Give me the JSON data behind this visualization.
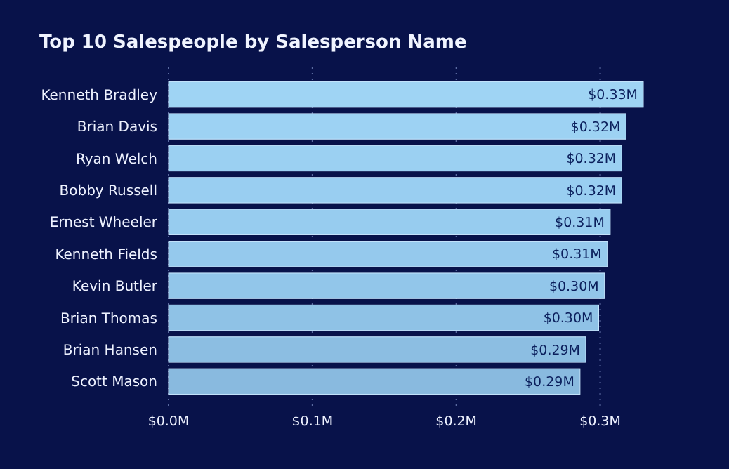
{
  "chart_data": {
    "type": "bar",
    "orientation": "horizontal",
    "title": "Top 10 Salespeople by Salesperson Name",
    "categories": [
      "Kenneth Bradley",
      "Brian Davis",
      "Ryan Welch",
      "Bobby Russell",
      "Ernest Wheeler",
      "Kenneth Fields",
      "Kevin Butler",
      "Brian Thomas",
      "Brian Hansen",
      "Scott Mason"
    ],
    "values": [
      0.33,
      0.318,
      0.315,
      0.315,
      0.307,
      0.305,
      0.303,
      0.299,
      0.29,
      0.286
    ],
    "value_labels": [
      "$0.33M",
      "$0.32M",
      "$0.32M",
      "$0.32M",
      "$0.31M",
      "$0.31M",
      "$0.30M",
      "$0.30M",
      "$0.29M",
      "$0.29M"
    ],
    "colors": [
      "#9fd4f4",
      "#9dd2f3",
      "#9bd0f2",
      "#99cef1",
      "#97ccef",
      "#95c9ed",
      "#92c6ea",
      "#8fc2e6",
      "#8cbee2",
      "#89badf"
    ],
    "xlim": [
      0,
      0.33
    ],
    "xticks": [
      {
        "value": 0,
        "label": "$0.0M"
      },
      {
        "value": 0.1,
        "label": "$0.1M"
      },
      {
        "value": 0.2,
        "label": "$0.2M"
      },
      {
        "value": 0.3,
        "label": "$0.3M"
      }
    ],
    "grid": "x"
  }
}
